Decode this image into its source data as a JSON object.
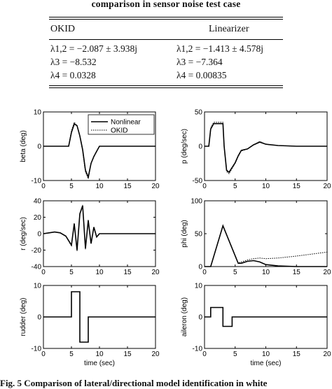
{
  "table": {
    "caption": "comparison in sensor noise test case",
    "headers": [
      "OKID",
      "Linearizer"
    ],
    "rows": [
      [
        "λ1,2 = −2.087 ± 3.938j",
        "λ1,2 = −1.413 ± 4.578j"
      ],
      [
        "λ3 = −8.532",
        "λ3 = −7.364"
      ],
      [
        "λ4 = 0.0328",
        "λ4 = 0.00835"
      ]
    ]
  },
  "figure_caption": "Fig. 5   Comparison of lateral/directional model identification in white",
  "colors": {
    "nonlinear": "#000000",
    "okid": "#000000"
  },
  "chart_data": [
    {
      "type": "line",
      "ylabel": "beta (deg)",
      "xlim": [
        0,
        20
      ],
      "ylim": [
        -10,
        10
      ],
      "xticks": [
        0,
        5,
        10,
        15,
        20
      ],
      "yticks": [
        -10,
        0,
        10
      ],
      "legend": {
        "entries": [
          "Nonlinear",
          "OKID"
        ],
        "placement": "top-right"
      },
      "series": [
        {
          "name": "Nonlinear",
          "style": "solid",
          "x": [
            0,
            4.5,
            5,
            5.5,
            6,
            6.5,
            7,
            7.5,
            8,
            8.5,
            9,
            9.5,
            10,
            20
          ],
          "y": [
            0,
            0,
            4,
            6.5,
            6,
            3,
            -1,
            -7,
            -9,
            -5,
            -3,
            -1.5,
            0,
            0
          ]
        },
        {
          "name": "OKID",
          "style": "dotted",
          "x": [
            0,
            4.5,
            5,
            5.5,
            6,
            6.5,
            7,
            7.5,
            8,
            8.5,
            9,
            9.5,
            10,
            20
          ],
          "y": [
            0,
            0,
            4.5,
            7,
            6,
            3,
            -1.5,
            -7.5,
            -9.5,
            -5,
            -3,
            -1.5,
            0,
            0
          ]
        }
      ]
    },
    {
      "type": "line",
      "ylabel": "p (deg/sec)",
      "xlim": [
        0,
        20
      ],
      "ylim": [
        -50,
        50
      ],
      "xticks": [
        0,
        5,
        10,
        15,
        20
      ],
      "yticks": [
        -50,
        0,
        50
      ],
      "series": [
        {
          "name": "Nonlinear",
          "style": "solid",
          "x": [
            0,
            0.7,
            1,
            1.5,
            3,
            3.2,
            3.6,
            4,
            5,
            5.5,
            6,
            7,
            8,
            9,
            10,
            12,
            15,
            20
          ],
          "y": [
            0,
            0,
            25,
            33,
            33,
            0,
            -35,
            -38,
            -24,
            -14,
            -6,
            -4,
            2,
            6,
            3,
            1,
            0,
            0
          ]
        },
        {
          "name": "OKID",
          "style": "dotted",
          "x": [
            0,
            0.7,
            1,
            1.5,
            3,
            3.2,
            3.6,
            4,
            5,
            5.5,
            6,
            7,
            8,
            9,
            10,
            12,
            15,
            20
          ],
          "y": [
            0,
            0,
            27,
            35,
            35,
            0,
            -37,
            -40,
            -25,
            -15,
            -7,
            -4,
            2,
            7,
            3,
            1,
            0,
            0
          ]
        }
      ]
    },
    {
      "type": "line",
      "ylabel": "r (deg/sec)",
      "xlim": [
        0,
        20
      ],
      "ylim": [
        -40,
        40
      ],
      "xticks": [
        0,
        5,
        10,
        15,
        20
      ],
      "yticks": [
        -40,
        -20,
        0,
        20,
        40
      ],
      "series": [
        {
          "name": "Nonlinear",
          "style": "solid",
          "x": [
            0,
            1,
            2,
            3,
            4,
            5,
            5.5,
            6,
            6.5,
            7,
            7.5,
            8,
            8.5,
            9,
            9.5,
            10,
            20
          ],
          "y": [
            0,
            1,
            2,
            1,
            -3,
            -14,
            12,
            -20,
            24,
            34,
            -18,
            16,
            -12,
            8,
            -4,
            0,
            0
          ]
        },
        {
          "name": "OKID",
          "style": "dotted",
          "x": [
            0,
            1,
            2,
            3,
            4,
            5,
            5.5,
            6,
            6.5,
            7,
            7.5,
            8,
            8.5,
            9,
            9.5,
            10,
            20
          ],
          "y": [
            0,
            1,
            2,
            1,
            -3,
            -15,
            13,
            -21,
            25,
            35,
            -19,
            17,
            -12,
            8,
            -4,
            0,
            0
          ]
        }
      ]
    },
    {
      "type": "line",
      "ylabel": "phi (deg)",
      "xlim": [
        0,
        20
      ],
      "ylim": [
        0,
        100
      ],
      "xticks": [
        0,
        5,
        10,
        15,
        20
      ],
      "yticks": [
        0,
        50,
        100
      ],
      "series": [
        {
          "name": "Nonlinear",
          "style": "solid",
          "x": [
            0,
            1,
            3,
            5.5,
            6,
            7,
            8,
            9,
            10,
            12,
            15,
            20
          ],
          "y": [
            0,
            0,
            62,
            5,
            5,
            8,
            9,
            7,
            3,
            1,
            0,
            0
          ]
        },
        {
          "name": "OKID",
          "style": "dotted",
          "x": [
            0,
            1,
            3,
            5.5,
            6,
            7,
            8,
            9,
            10,
            12,
            15,
            20
          ],
          "y": [
            0,
            0,
            62,
            5,
            7,
            10,
            12,
            13,
            12,
            13,
            16,
            22
          ]
        }
      ]
    },
    {
      "type": "line",
      "ylabel": "rudder (deg)",
      "xlabel": "time (sec)",
      "xlim": [
        0,
        20
      ],
      "ylim": [
        -10,
        10
      ],
      "xticks": [
        0,
        5,
        10,
        15,
        20
      ],
      "yticks": [
        -10,
        0,
        10
      ],
      "series": [
        {
          "name": "Nonlinear",
          "style": "solid",
          "x": [
            0,
            5,
            5,
            6.5,
            6.5,
            8,
            8,
            20
          ],
          "y": [
            0,
            0,
            8,
            8,
            -8,
            -8,
            0,
            0
          ]
        }
      ]
    },
    {
      "type": "line",
      "ylabel": "aileron (deg)",
      "xlabel": "time (sec)",
      "xlim": [
        0,
        20
      ],
      "ylim": [
        -10,
        10
      ],
      "xticks": [
        0,
        5,
        10,
        15,
        20
      ],
      "yticks": [
        -10,
        0,
        10
      ],
      "series": [
        {
          "name": "Nonlinear",
          "style": "solid",
          "x": [
            0,
            1,
            1,
            3,
            3,
            4.5,
            4.5,
            20
          ],
          "y": [
            0,
            0,
            3,
            3,
            -3,
            -3,
            0,
            0
          ]
        }
      ]
    }
  ]
}
